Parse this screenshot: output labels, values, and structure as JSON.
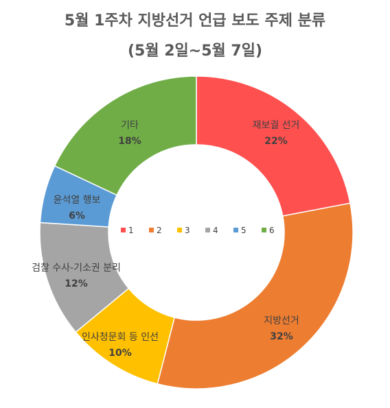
{
  "chart_data": {
    "type": "pie",
    "title": "5월 1주차 지방선거 언급 보도 주제 분류",
    "subtitle": "(5월 2일~5월 7일)",
    "slices": [
      {
        "name": "재보궐 선거",
        "value": 22,
        "pct_label": "22%",
        "legend": "1",
        "color": "#FF5050"
      },
      {
        "name": "지방선거",
        "value": 32,
        "pct_label": "32%",
        "legend": "2",
        "color": "#ED7D31"
      },
      {
        "name": "인사청문회 등 인선",
        "value": 10,
        "pct_label": "10%",
        "legend": "3",
        "color": "#FFC000"
      },
      {
        "name": "검찰 수사-기소권 분리",
        "value": 12,
        "pct_label": "12%",
        "legend": "4",
        "color": "#A5A5A5"
      },
      {
        "name": "윤석열 행보",
        "value": 6,
        "pct_label": "6%",
        "legend": "5",
        "color": "#5B9BD5"
      },
      {
        "name": "기타",
        "value": 18,
        "pct_label": "18%",
        "legend": "6",
        "color": "#70AD47"
      }
    ],
    "legend_position": "center"
  }
}
